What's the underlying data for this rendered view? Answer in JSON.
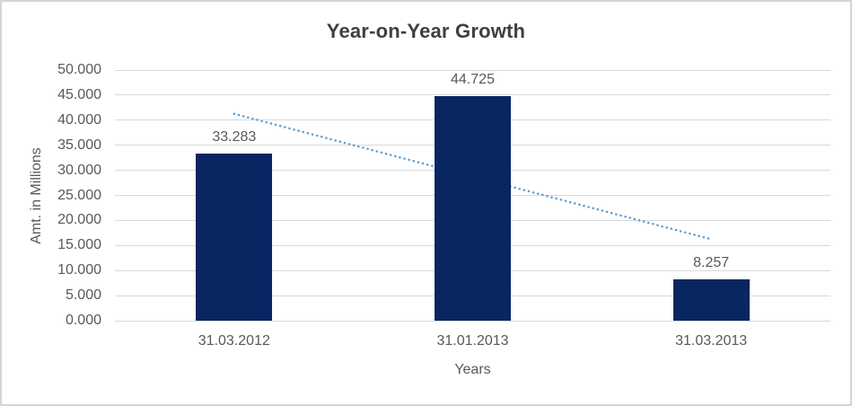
{
  "window": {
    "background": "#FFFFFF",
    "border_color": "#D4D4D4"
  },
  "chart_data": {
    "type": "bar",
    "title": "Year-on-Year Growth",
    "xlabel": "Years",
    "ylabel": "Amt. in Millions",
    "categories": [
      "31.03.2012",
      "31.01.2013",
      "31.03.2013"
    ],
    "values": [
      33.283,
      44.725,
      8.257
    ],
    "data_labels": [
      "33.283",
      "44.725",
      "8.257"
    ],
    "ylim": [
      0,
      50
    ],
    "ytick_step": 5,
    "ytick_labels": [
      "0.000",
      "5.000",
      "10.000",
      "15.000",
      "20.000",
      "25.000",
      "30.000",
      "35.000",
      "40.000",
      "45.000",
      "50.000"
    ],
    "grid": "horizontal",
    "legend": "none",
    "trendline": {
      "type": "linear",
      "style": "dotted",
      "start_value": 41.27,
      "end_value": 16.24
    },
    "colors": {
      "bar": "#092562",
      "trendline": "#5B9BD5",
      "gridline": "#D9D9D9",
      "title_text": "#3F3F3F",
      "axis_text": "#595959"
    }
  }
}
